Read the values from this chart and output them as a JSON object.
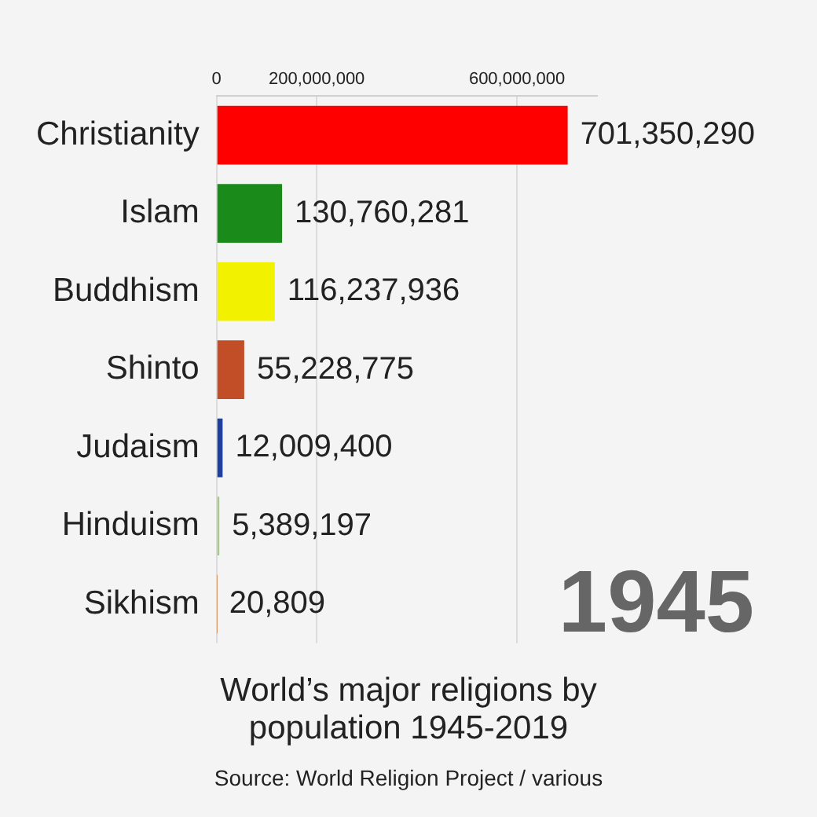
{
  "chart_data": {
    "type": "bar",
    "orientation": "horizontal",
    "title": "World’s major religions by population 1945-2019",
    "categories": [
      "Christianity",
      "Islam",
      "Buddhism",
      "Shinto",
      "Judaism",
      "Hinduism",
      "Sikhism"
    ],
    "values": [
      701350290,
      130760281,
      116237936,
      55228775,
      12009400,
      5389197,
      20809
    ],
    "colors": [
      "#ff0000",
      "#1a8a1a",
      "#f2f200",
      "#c24e28",
      "#1f3f9f",
      "#a8c890",
      "#e08040"
    ],
    "xlim": [
      0,
      760000000
    ],
    "xticks": [
      {
        "value": 0,
        "label": "0"
      },
      {
        "value": 200000000,
        "label": "200,000,000"
      },
      {
        "value": 600000000,
        "label": "600,000,000"
      }
    ],
    "grid": "x",
    "legend": false,
    "value_labels": [
      "701,350,290",
      "130,760,281",
      "116,237,936",
      "55,228,775",
      "12,009,400",
      "5,389,197",
      "20,809"
    ],
    "annotations": [
      "1945",
      "Source: World Religion Project / various"
    ]
  }
}
